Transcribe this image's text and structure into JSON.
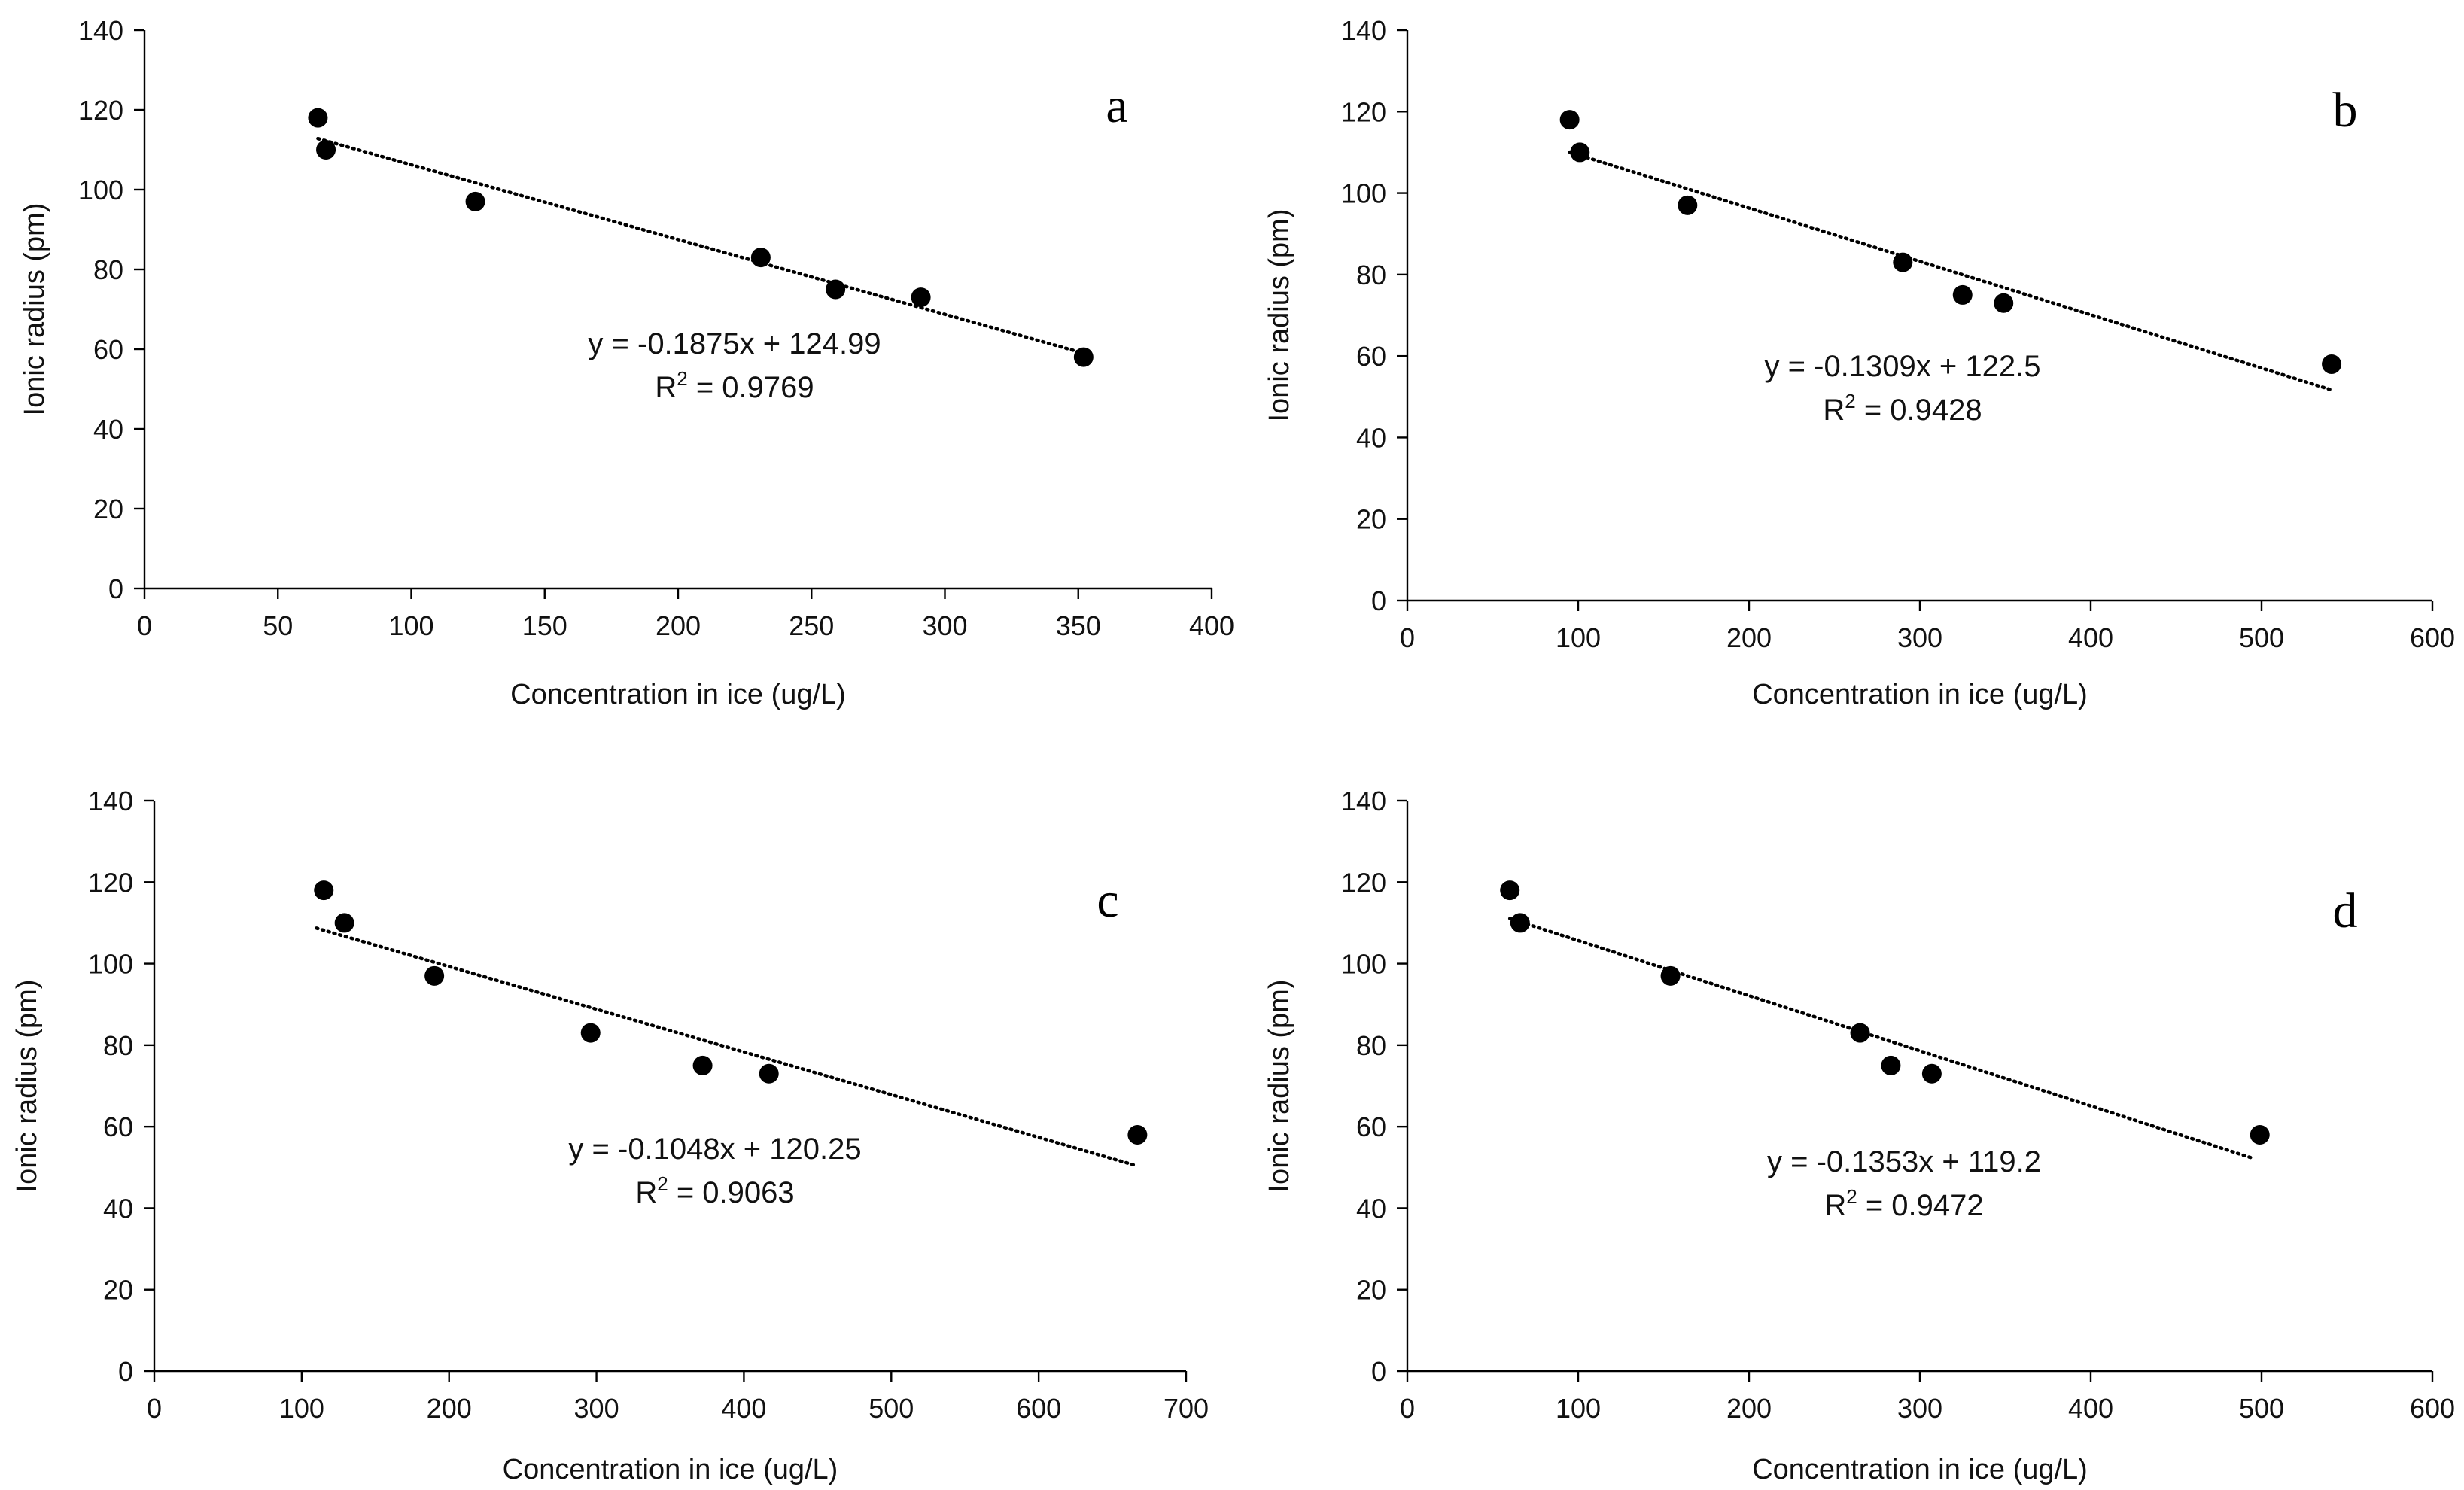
{
  "chart_data": [
    {
      "type": "scatter",
      "panel": "a",
      "xlabel": "Concentration in ice (ug/L)",
      "ylabel": "Ionic radius (pm)",
      "xlim": [
        0,
        400
      ],
      "ylim": [
        0,
        140
      ],
      "xticks": [
        0,
        50,
        100,
        150,
        200,
        250,
        300,
        350,
        400
      ],
      "yticks": [
        0,
        20,
        40,
        60,
        80,
        100,
        120,
        140
      ],
      "points": [
        [
          65,
          118
        ],
        [
          68,
          110
        ],
        [
          124,
          97
        ],
        [
          231,
          83
        ],
        [
          259,
          75
        ],
        [
          291,
          73
        ],
        [
          352,
          58
        ]
      ],
      "trendline": {
        "slope": -0.1875,
        "intercept": 124.99,
        "x_range": [
          65,
          352
        ]
      },
      "equation": "y = -0.1875x + 124.99",
      "r2_prefix": "R",
      "r2_value": " = 0.9769"
    },
    {
      "type": "scatter",
      "panel": "b",
      "xlabel": "Concentration in ice (ug/L)",
      "ylabel": "Ionic radius (pm)",
      "xlim": [
        0,
        600
      ],
      "ylim": [
        0,
        140
      ],
      "xticks": [
        0,
        100,
        200,
        300,
        400,
        500,
        600
      ],
      "yticks": [
        0,
        20,
        40,
        60,
        80,
        100,
        120,
        140
      ],
      "points": [
        [
          95,
          118
        ],
        [
          101,
          110
        ],
        [
          164,
          97
        ],
        [
          290,
          83
        ],
        [
          325,
          75
        ],
        [
          349,
          73
        ],
        [
          541,
          58
        ]
      ],
      "trendline": {
        "slope": -0.1309,
        "intercept": 122.5,
        "x_range": [
          95,
          541
        ]
      },
      "equation": "y = -0.1309x + 122.5",
      "r2_prefix": "R",
      "r2_value": " = 0.9428"
    },
    {
      "type": "scatter",
      "panel": "c",
      "xlabel": "Concentration in ice (ug/L)",
      "ylabel": "Ionic radius (pm)",
      "xlim": [
        0,
        700
      ],
      "ylim": [
        0,
        140
      ],
      "xticks": [
        0,
        100,
        200,
        300,
        400,
        500,
        600,
        700
      ],
      "yticks": [
        0,
        20,
        40,
        60,
        80,
        100,
        120,
        140
      ],
      "points": [
        [
          115,
          118
        ],
        [
          129,
          110
        ],
        [
          190,
          97
        ],
        [
          296,
          83
        ],
        [
          372,
          75
        ],
        [
          417,
          73
        ],
        [
          667,
          58
        ]
      ],
      "trendline": {
        "slope": -0.1048,
        "intercept": 120.25,
        "x_range": [
          110,
          665
        ]
      },
      "equation": "y = -0.1048x + 120.25",
      "r2_prefix": "R",
      "r2_value": " = 0.9063"
    },
    {
      "type": "scatter",
      "panel": "d",
      "xlabel": "Concentration in ice (ug/L)",
      "ylabel": "Ionic radius (pm)",
      "xlim": [
        0,
        600
      ],
      "ylim": [
        0,
        140
      ],
      "xticks": [
        0,
        100,
        200,
        300,
        400,
        500,
        600
      ],
      "yticks": [
        0,
        20,
        40,
        60,
        80,
        100,
        120,
        140
      ],
      "points": [
        [
          60,
          118
        ],
        [
          66,
          110
        ],
        [
          154,
          97
        ],
        [
          265,
          83
        ],
        [
          283,
          75
        ],
        [
          307,
          73
        ],
        [
          499,
          58
        ]
      ],
      "trendline": {
        "slope": -0.1353,
        "intercept": 119.2,
        "x_range": [
          60,
          495
        ]
      },
      "equation": "y = -0.1353x + 119.2",
      "r2_prefix": "R",
      "r2_value": " = 0.9472"
    }
  ]
}
